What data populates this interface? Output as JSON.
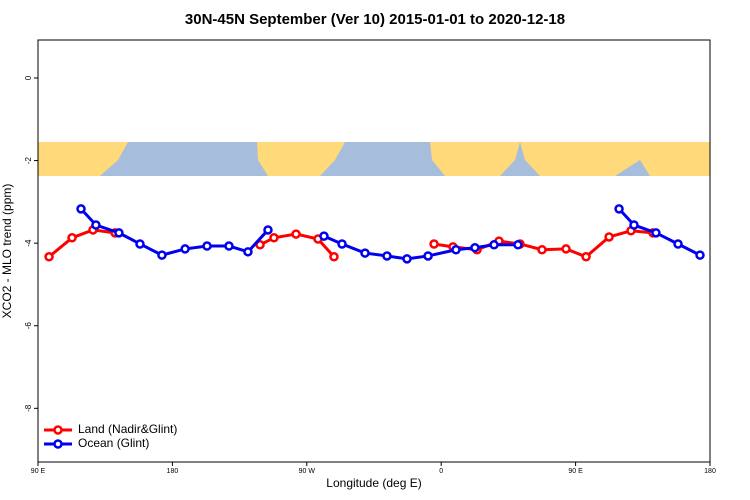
{
  "chart_data": {
    "type": "line",
    "title": "30N-45N September (Ver 10)   2015-01-01 to 2020-12-18",
    "xlabel": "Longitude (deg E)",
    "ylabel": "XCO2 - MLO trend (ppm)",
    "xlim": [
      90,
      540
    ],
    "xticks": [
      {
        "value": 90,
        "label": "90 E"
      },
      180,
      {
        "value": 270,
        "label": "90 W"
      },
      {
        "value": 360,
        "label": "0"
      },
      {
        "value": 450,
        "label": "90 E"
      },
      {
        "value": 540,
        "label": "180"
      }
    ],
    "ylim": [
      -9.3,
      0.92
    ],
    "yticks": [
      0,
      -2,
      -4,
      -6,
      -8
    ],
    "legend": "bottomleft",
    "series": [
      {
        "name": "Land (Nadir&Glint)",
        "color": "#ff0000",
        "x": [
          97.4,
          112.8,
          126.8,
          141.6,
          null,
          238.7,
          248.0,
          262.8,
          277.5,
          288.2,
          null,
          355.2,
          367.9,
          384.0,
          398.7,
          412.8,
          427.5,
          443.6,
          457.0,
          472.4,
          487.1,
          501.8
        ],
        "values": [
          -4.33,
          -3.87,
          -3.68,
          -3.75,
          null,
          -4.04,
          -3.87,
          -3.78,
          -3.9,
          -4.33,
          null,
          -4.02,
          -4.09,
          -4.16,
          -3.95,
          -4.02,
          -4.16,
          -4.14,
          -4.33,
          -3.85,
          -3.7,
          -3.75
        ]
      },
      {
        "name": "Ocean (Glint)",
        "color": "#0000ee",
        "x": [
          118.8,
          128.8,
          144.2,
          158.3,
          173.0,
          188.5,
          203.2,
          217.9,
          230.6,
          244.0,
          null,
          281.5,
          293.6,
          309.0,
          323.7,
          337.1,
          351.2,
          369.9,
          382.6,
          395.4,
          411.4,
          null,
          479.1,
          489.1,
          503.8,
          518.6,
          533.3
        ],
        "values": [
          -3.17,
          -3.56,
          -3.75,
          -4.02,
          -4.29,
          -4.14,
          -4.07,
          -4.07,
          -4.21,
          -3.68,
          null,
          -3.83,
          -4.02,
          -4.24,
          -4.31,
          -4.38,
          -4.31,
          -4.16,
          -4.11,
          -4.04,
          -4.04,
          null,
          -3.17,
          -3.56,
          -3.75,
          -4.02,
          -4.29
        ]
      }
    ]
  }
}
